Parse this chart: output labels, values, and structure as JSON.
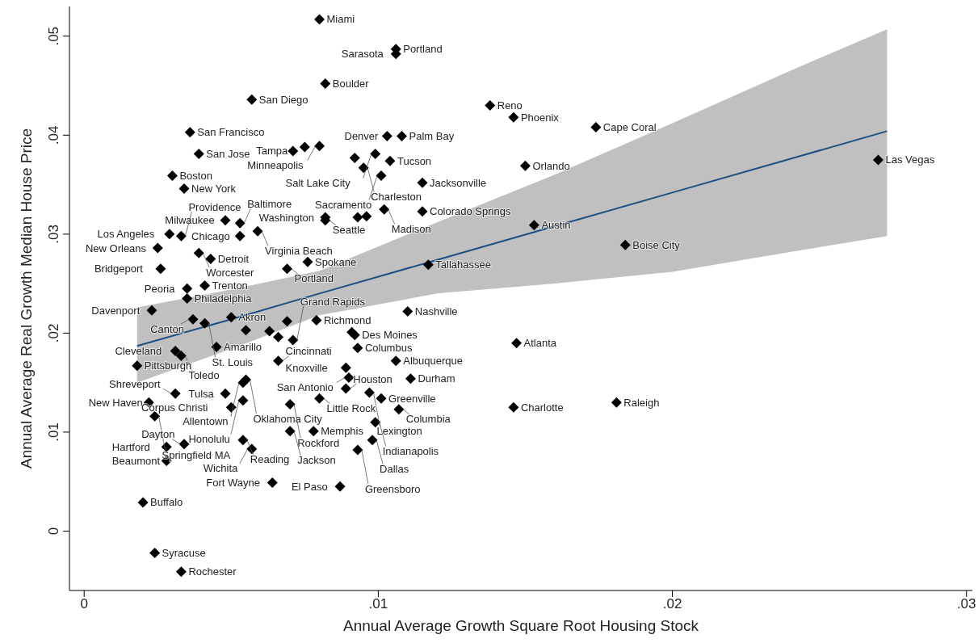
{
  "chart_data": {
    "type": "scatter",
    "xlabel": "Annual Average Growth Square Root Housing Stock",
    "ylabel": "Annual Average Real Growth Median House Price",
    "xlim": [
      -0.0005,
      0.0302
    ],
    "ylim": [
      -0.006,
      0.053
    ],
    "xticks": [
      {
        "value": 0,
        "label": "0"
      },
      {
        "value": 0.01,
        "label": ".01"
      },
      {
        "value": 0.02,
        "label": ".02"
      },
      {
        "value": 0.03,
        "label": ".03"
      }
    ],
    "yticks": [
      {
        "value": 0,
        "label": "0"
      },
      {
        "value": 0.01,
        "label": ".01"
      },
      {
        "value": 0.02,
        "label": ".02"
      },
      {
        "value": 0.03,
        "label": ".03"
      },
      {
        "value": 0.04,
        "label": ".04"
      },
      {
        "value": 0.05,
        "label": ".05"
      }
    ],
    "grid": false,
    "marker": "diamond",
    "series": [
      {
        "color": "#000000",
        "x": [
          0.008,
          0.0106,
          0.0106,
          0.0082,
          0.0057,
          0.0138,
          0.0146,
          0.0174,
          0.0036,
          0.0103,
          0.0108,
          0.0039,
          0.0071,
          0.0075,
          0.008,
          0.0099,
          0.0092,
          0.0104,
          0.0095,
          0.0101,
          0.0115,
          0.015,
          0.027,
          0.003,
          0.0034,
          0.0102,
          0.0115,
          0.0082,
          0.0082,
          0.0093,
          0.0096,
          0.0153,
          0.0048,
          0.0053,
          0.0059,
          0.0029,
          0.0033,
          0.0053,
          0.0025,
          0.0039,
          0.0043,
          0.0026,
          0.0076,
          0.0069,
          0.0184,
          0.0117,
          0.0041,
          0.0035,
          0.0035,
          0.0023,
          0.011,
          0.0037,
          0.0041,
          0.005,
          0.0055,
          0.0063,
          0.0069,
          0.0079,
          0.0066,
          0.0071,
          0.0092,
          0.0091,
          0.0093,
          0.0147,
          0.0045,
          0.0031,
          0.0033,
          0.0018,
          0.0066,
          0.0089,
          0.0106,
          0.009,
          0.0111,
          0.0055,
          0.0054,
          0.0089,
          0.0097,
          0.0031,
          0.0048,
          0.008,
          0.0101,
          0.0054,
          0.007,
          0.0022,
          0.005,
          0.0146,
          0.0181,
          0.0107,
          0.0024,
          0.0099,
          0.007,
          0.0078,
          0.0054,
          0.0098,
          0.0034,
          0.0028,
          0.0057,
          0.0093,
          0.0028,
          0.0064,
          0.0087,
          0.002,
          0.0024,
          0.0033
        ],
        "values": [
          0.0517,
          0.0487,
          0.0482,
          0.0452,
          0.0436,
          0.043,
          0.0418,
          0.0408,
          0.0403,
          0.0399,
          0.0399,
          0.0381,
          0.0384,
          0.0388,
          0.0389,
          0.0381,
          0.0377,
          0.0374,
          0.0367,
          0.0359,
          0.0352,
          0.0369,
          0.0375,
          0.0359,
          0.0346,
          0.0325,
          0.0323,
          0.0317,
          0.0314,
          0.0317,
          0.0318,
          0.0309,
          0.0314,
          0.0311,
          0.0303,
          0.03,
          0.0298,
          0.0298,
          0.0286,
          0.0281,
          0.0275,
          0.0265,
          0.0272,
          0.0265,
          0.0289,
          0.0269,
          0.0248,
          0.0245,
          0.0235,
          0.0223,
          0.0222,
          0.0214,
          0.021,
          0.0216,
          0.0203,
          0.0202,
          0.0212,
          0.0213,
          0.0196,
          0.0193,
          0.0198,
          0.0201,
          0.0185,
          0.019,
          0.0186,
          0.0182,
          0.0177,
          0.0167,
          0.0172,
          0.0165,
          0.0172,
          0.0155,
          0.0154,
          0.0153,
          0.015,
          0.0144,
          0.014,
          0.0139,
          0.0139,
          0.0134,
          0.0134,
          0.0132,
          0.0128,
          0.013,
          0.0125,
          0.0125,
          0.013,
          0.0123,
          0.0116,
          0.011,
          0.0101,
          0.0101,
          0.0092,
          0.0092,
          0.0088,
          0.0085,
          0.0083,
          0.0082,
          0.0071,
          0.0049,
          0.0045,
          0.0029,
          -0.0022,
          -0.0041
        ]
      },
      {
        "type": "line",
        "color": "#1c4f82",
        "line_style": "solid",
        "marker": "none",
        "x": [
          0.0018,
          0.005,
          0.008,
          0.012,
          0.016,
          0.02,
          0.024,
          0.0273
        ],
        "values": [
          0.0187,
          0.0214,
          0.024,
          0.0274,
          0.0308,
          0.0342,
          0.0376,
          0.0404
        ],
        "lower": [
          0.015,
          0.0184,
          0.0218,
          0.024,
          0.025,
          0.0262,
          0.0282,
          0.0298
        ],
        "upper": [
          0.0226,
          0.0244,
          0.0263,
          0.0312,
          0.036,
          0.0412,
          0.0465,
          0.0507
        ]
      }
    ],
    "annotations": [
      {
        "text": "Miami",
        "x": 0.008,
        "y": 0.0517
      },
      {
        "text": "Portland",
        "x": 0.0106,
        "y": 0.0487
      },
      {
        "text": "Sarasota",
        "x": 0.0106,
        "y": 0.0482
      },
      {
        "text": "Boulder",
        "x": 0.0082,
        "y": 0.0452
      },
      {
        "text": "San Diego",
        "x": 0.0057,
        "y": 0.0436
      },
      {
        "text": "Reno",
        "x": 0.0138,
        "y": 0.043
      },
      {
        "text": "Phoenix",
        "x": 0.0146,
        "y": 0.0418
      },
      {
        "text": "Cape Coral",
        "x": 0.0174,
        "y": 0.0408
      },
      {
        "text": "San Francisco",
        "x": 0.0036,
        "y": 0.0403
      },
      {
        "text": "Denver",
        "x": 0.0103,
        "y": 0.0399
      },
      {
        "text": "Palm Bay",
        "x": 0.0108,
        "y": 0.0399
      },
      {
        "text": "San Jose",
        "x": 0.0039,
        "y": 0.0381
      },
      {
        "text": "Tampa",
        "x": 0.0071,
        "y": 0.0384
      },
      {
        "text": "Minneapolis",
        "x": 0.008,
        "y": 0.0389
      },
      {
        "text": "Salt Lake City",
        "x": 0.0099,
        "y": 0.0381
      },
      {
        "text": "Tucson",
        "x": 0.0104,
        "y": 0.0374
      },
      {
        "text": "Charleston",
        "x": 0.0095,
        "y": 0.0367
      },
      {
        "text": "Sacramento",
        "x": 0.0101,
        "y": 0.0359
      },
      {
        "text": "Jacksonville",
        "x": 0.0115,
        "y": 0.0352
      },
      {
        "text": "Orlando",
        "x": 0.015,
        "y": 0.0369
      },
      {
        "text": "Las Vegas",
        "x": 0.027,
        "y": 0.0375
      },
      {
        "text": "Boston",
        "x": 0.003,
        "y": 0.0359
      },
      {
        "text": "New York",
        "x": 0.0034,
        "y": 0.0346
      },
      {
        "text": "Madison",
        "x": 0.0102,
        "y": 0.0325
      },
      {
        "text": "Colorado Springs",
        "x": 0.0115,
        "y": 0.0323
      },
      {
        "text": "Washington",
        "x": 0.0082,
        "y": 0.0317
      },
      {
        "text": "Seattle",
        "x": 0.0082,
        "y": 0.0314
      },
      {
        "text": "Austin",
        "x": 0.0153,
        "y": 0.0309
      },
      {
        "text": "Milwaukee",
        "x": 0.0048,
        "y": 0.0314
      },
      {
        "text": "Baltimore",
        "x": 0.0053,
        "y": 0.0311
      },
      {
        "text": "Virginia Beach",
        "x": 0.0059,
        "y": 0.0303
      },
      {
        "text": "Los Angeles",
        "x": 0.0029,
        "y": 0.03
      },
      {
        "text": "Providence",
        "x": 0.0033,
        "y": 0.0298
      },
      {
        "text": "Chicago",
        "x": 0.0053,
        "y": 0.0298
      },
      {
        "text": "New Orleans",
        "x": 0.0025,
        "y": 0.0286
      },
      {
        "text": "Worcester",
        "x": 0.0039,
        "y": 0.0281
      },
      {
        "text": "Detroit",
        "x": 0.0043,
        "y": 0.0275
      },
      {
        "text": "Bridgeport",
        "x": 0.0026,
        "y": 0.0265
      },
      {
        "text": "Spokane",
        "x": 0.0076,
        "y": 0.0272
      },
      {
        "text": "Portland",
        "x": 0.0069,
        "y": 0.0265
      },
      {
        "text": "Boise City",
        "x": 0.0184,
        "y": 0.0289
      },
      {
        "text": "Tallahassee",
        "x": 0.0117,
        "y": 0.0269
      },
      {
        "text": "Trenton",
        "x": 0.0041,
        "y": 0.0248
      },
      {
        "text": "Peoria",
        "x": 0.0035,
        "y": 0.0245
      },
      {
        "text": "Philadelphia",
        "x": 0.0035,
        "y": 0.0235
      },
      {
        "text": "Davenport",
        "x": 0.0023,
        "y": 0.0223
      },
      {
        "text": "Nashville",
        "x": 0.011,
        "y": 0.0222
      },
      {
        "text": "Canton",
        "x": 0.0037,
        "y": 0.0214
      },
      {
        "text": "St. Louis",
        "x": 0.0041,
        "y": 0.021
      },
      {
        "text": "Akron",
        "x": 0.005,
        "y": 0.0216
      },
      {
        "text": "Richmond",
        "x": 0.0079,
        "y": 0.0213
      },
      {
        "text": "Grand Rapids",
        "x": 0.0071,
        "y": 0.0193
      },
      {
        "text": "Des Moines",
        "x": 0.0092,
        "y": 0.0198
      },
      {
        "text": "Columbus",
        "x": 0.0093,
        "y": 0.0185
      },
      {
        "text": "Atlanta",
        "x": 0.0147,
        "y": 0.019
      },
      {
        "text": "Amarillo",
        "x": 0.0045,
        "y": 0.0186
      },
      {
        "text": "Cleveland",
        "x": 0.0031,
        "y": 0.0182
      },
      {
        "text": "Toledo",
        "x": 0.0033,
        "y": 0.0177
      },
      {
        "text": "Pittsburgh",
        "x": 0.0018,
        "y": 0.0167
      },
      {
        "text": "Cincinnati",
        "x": 0.0066,
        "y": 0.0172
      },
      {
        "text": "Knoxville",
        "x": 0.0089,
        "y": 0.0165
      },
      {
        "text": "Albuquerque",
        "x": 0.0106,
        "y": 0.0172
      },
      {
        "text": "San Antonio",
        "x": 0.009,
        "y": 0.0155
      },
      {
        "text": "Durham",
        "x": 0.0111,
        "y": 0.0154
      },
      {
        "text": "Oklahoma City",
        "x": 0.0055,
        "y": 0.0153
      },
      {
        "text": "Allentown",
        "x": 0.0054,
        "y": 0.015
      },
      {
        "text": "Houston",
        "x": 0.0089,
        "y": 0.0144
      },
      {
        "text": "Lexington",
        "x": 0.0097,
        "y": 0.014
      },
      {
        "text": "Shreveport",
        "x": 0.0031,
        "y": 0.0139
      },
      {
        "text": "Tulsa",
        "x": 0.0048,
        "y": 0.0139
      },
      {
        "text": "Little Rock",
        "x": 0.008,
        "y": 0.0134
      },
      {
        "text": "Greenville",
        "x": 0.0101,
        "y": 0.0134
      },
      {
        "text": "Honolulu",
        "x": 0.0054,
        "y": 0.0132
      },
      {
        "text": "Rockford",
        "x": 0.007,
        "y": 0.0128
      },
      {
        "text": "New Haven",
        "x": 0.0022,
        "y": 0.013
      },
      {
        "text": "Corpus Christi",
        "x": 0.005,
        "y": 0.0125
      },
      {
        "text": "Charlotte",
        "x": 0.0146,
        "y": 0.0125
      },
      {
        "text": "Raleigh",
        "x": 0.0181,
        "y": 0.013
      },
      {
        "text": "Columbia",
        "x": 0.0107,
        "y": 0.0123
      },
      {
        "text": "Springfield MA",
        "x": 0.0024,
        "y": 0.0116
      },
      {
        "text": "Indianapolis",
        "x": 0.0099,
        "y": 0.011
      },
      {
        "text": "Jackson",
        "x": 0.007,
        "y": 0.0101
      },
      {
        "text": "Memphis",
        "x": 0.0078,
        "y": 0.0101
      },
      {
        "text": "Reading",
        "x": 0.0054,
        "y": 0.0092
      },
      {
        "text": "Dallas",
        "x": 0.0098,
        "y": 0.0092
      },
      {
        "text": "Dayton",
        "x": 0.0034,
        "y": 0.0088
      },
      {
        "text": "Hartford",
        "x": 0.0028,
        "y": 0.0085
      },
      {
        "text": "Wichita",
        "x": 0.0057,
        "y": 0.0083
      },
      {
        "text": "Greensboro",
        "x": 0.0093,
        "y": 0.0082
      },
      {
        "text": "Beaumont",
        "x": 0.0028,
        "y": 0.0071
      },
      {
        "text": "Fort Wayne",
        "x": 0.0064,
        "y": 0.0049
      },
      {
        "text": "El Paso",
        "x": 0.0087,
        "y": 0.0045
      },
      {
        "text": "Buffalo",
        "x": 0.002,
        "y": 0.0029
      },
      {
        "text": "Syracuse",
        "x": 0.0024,
        "y": -0.0022
      },
      {
        "text": "Rochester",
        "x": 0.0033,
        "y": -0.0041
      }
    ]
  }
}
